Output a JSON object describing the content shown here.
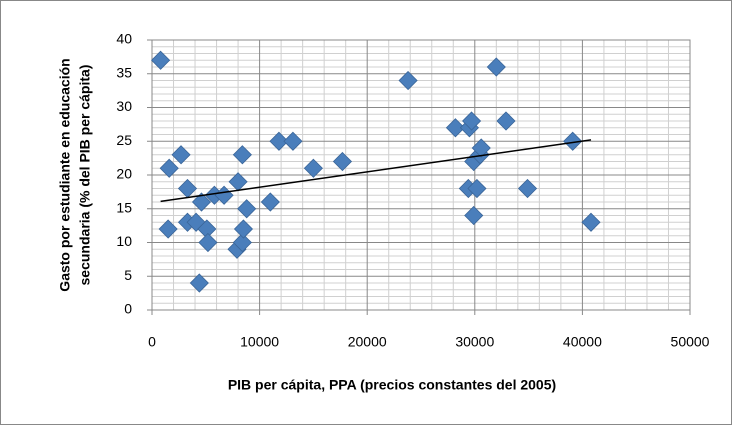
{
  "chart_data": {
    "type": "scatter",
    "xlabel": "PIB per cápita, PPA (precios constantes del 2005)",
    "ylabel": [
      "Gasto por estudiante en educación",
      "secundaria (% del PIB per cápita)"
    ],
    "x": [
      800,
      1500,
      1600,
      2700,
      3300,
      3300,
      4100,
      4400,
      4600,
      5100,
      5200,
      5800,
      6700,
      7900,
      8000,
      8400,
      8400,
      8500,
      8800,
      11000,
      11800,
      13100,
      15000,
      17700,
      23800,
      28200,
      29400,
      29500,
      29700,
      29900,
      29900,
      30200,
      30500,
      30600,
      32000,
      32900,
      34900,
      39100,
      40800
    ],
    "series": [
      {
        "color": "#4a7ebb",
        "values": [
          37,
          12,
          21,
          23,
          18,
          13,
          13,
          4,
          16,
          12,
          10,
          17,
          17,
          9,
          19,
          10,
          23,
          12,
          15,
          16,
          25,
          25,
          21,
          22,
          34,
          27,
          18,
          27,
          28,
          14,
          22,
          18,
          23,
          24,
          36,
          28,
          18,
          25,
          13
        ]
      }
    ],
    "trendline": {
      "x": [
        800,
        40800
      ],
      "y": [
        16.1,
        25.2
      ],
      "color": "#000000"
    },
    "xlim": [
      0,
      50000
    ],
    "xticks": [
      0,
      10000,
      20000,
      30000,
      40000,
      50000
    ],
    "ylim": [
      0,
      40
    ],
    "yticks": [
      0,
      5,
      10,
      15,
      20,
      25,
      30,
      35,
      40
    ],
    "grid": true
  }
}
